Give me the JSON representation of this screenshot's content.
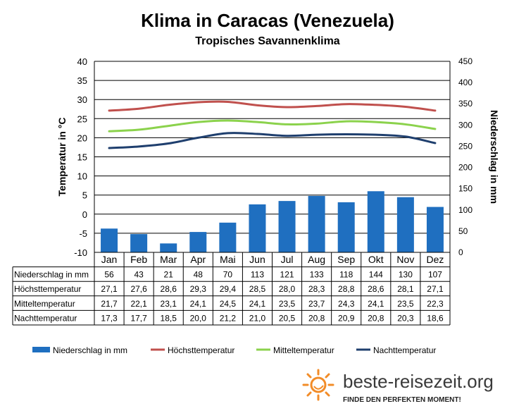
{
  "header": {
    "title": "Klima in Caracas (Venezuela)",
    "subtitle": "Tropisches Savannenklima"
  },
  "chart_data": {
    "type": "bar",
    "categories": [
      "Jan",
      "Feb",
      "Mar",
      "Apr",
      "Mai",
      "Jun",
      "Jul",
      "Aug",
      "Sep",
      "Okt",
      "Nov",
      "Dez"
    ],
    "y_left": {
      "label": "Temperatur in °C",
      "min": -10,
      "max": 40,
      "step": 5
    },
    "y_right": {
      "label": "Niederschlag in mm",
      "min": 0,
      "max": 450,
      "step": 50
    },
    "grid": "horizontal",
    "legend_position": "bottom",
    "series": [
      {
        "name": "Niederschlag in mm",
        "kind": "bar",
        "axis": "right",
        "color": "#1f6fc0",
        "values": [
          56,
          43,
          21,
          48,
          70,
          113,
          121,
          133,
          118,
          144,
          130,
          107
        ]
      },
      {
        "name": "Höchsttemperatur",
        "kind": "line",
        "axis": "left",
        "color": "#c0504d",
        "values": [
          27.1,
          27.6,
          28.6,
          29.3,
          29.4,
          28.5,
          28.0,
          28.3,
          28.8,
          28.6,
          28.1,
          27.1
        ]
      },
      {
        "name": "Mitteltemperatur",
        "kind": "line",
        "axis": "left",
        "color": "#8bd24c",
        "values": [
          21.7,
          22.1,
          23.1,
          24.1,
          24.5,
          24.1,
          23.5,
          23.7,
          24.3,
          24.1,
          23.5,
          22.3
        ]
      },
      {
        "name": "Nachttemperatur",
        "kind": "line",
        "axis": "left",
        "color": "#1f3f6e",
        "values": [
          17.3,
          17.7,
          18.5,
          20.0,
          21.2,
          21.0,
          20.5,
          20.8,
          20.9,
          20.8,
          20.3,
          18.6
        ]
      }
    ],
    "table": {
      "rows": [
        {
          "label": "Niederschlag in mm",
          "values": [
            "56",
            "43",
            "21",
            "48",
            "70",
            "113",
            "121",
            "133",
            "118",
            "144",
            "130",
            "107"
          ]
        },
        {
          "label": "Höchsttemperatur",
          "values": [
            "27,1",
            "27,6",
            "28,6",
            "29,3",
            "29,4",
            "28,5",
            "28,0",
            "28,3",
            "28,8",
            "28,6",
            "28,1",
            "27,1"
          ]
        },
        {
          "label": "Mitteltemperatur",
          "values": [
            "21,7",
            "22,1",
            "23,1",
            "24,1",
            "24,5",
            "24,1",
            "23,5",
            "23,7",
            "24,3",
            "24,1",
            "23,5",
            "22,3"
          ]
        },
        {
          "label": "Nachttemperatur",
          "values": [
            "17,3",
            "17,7",
            "18,5",
            "20,0",
            "21,2",
            "21,0",
            "20,5",
            "20,8",
            "20,9",
            "20,8",
            "20,3",
            "18,6"
          ]
        }
      ]
    }
  },
  "branding": {
    "site": "beste-reisezeit.org",
    "tagline": "FINDE DEN PERFEKTEN MOMENT!",
    "logo_icon": "sun-icon",
    "logo_color": "#f28c28"
  }
}
